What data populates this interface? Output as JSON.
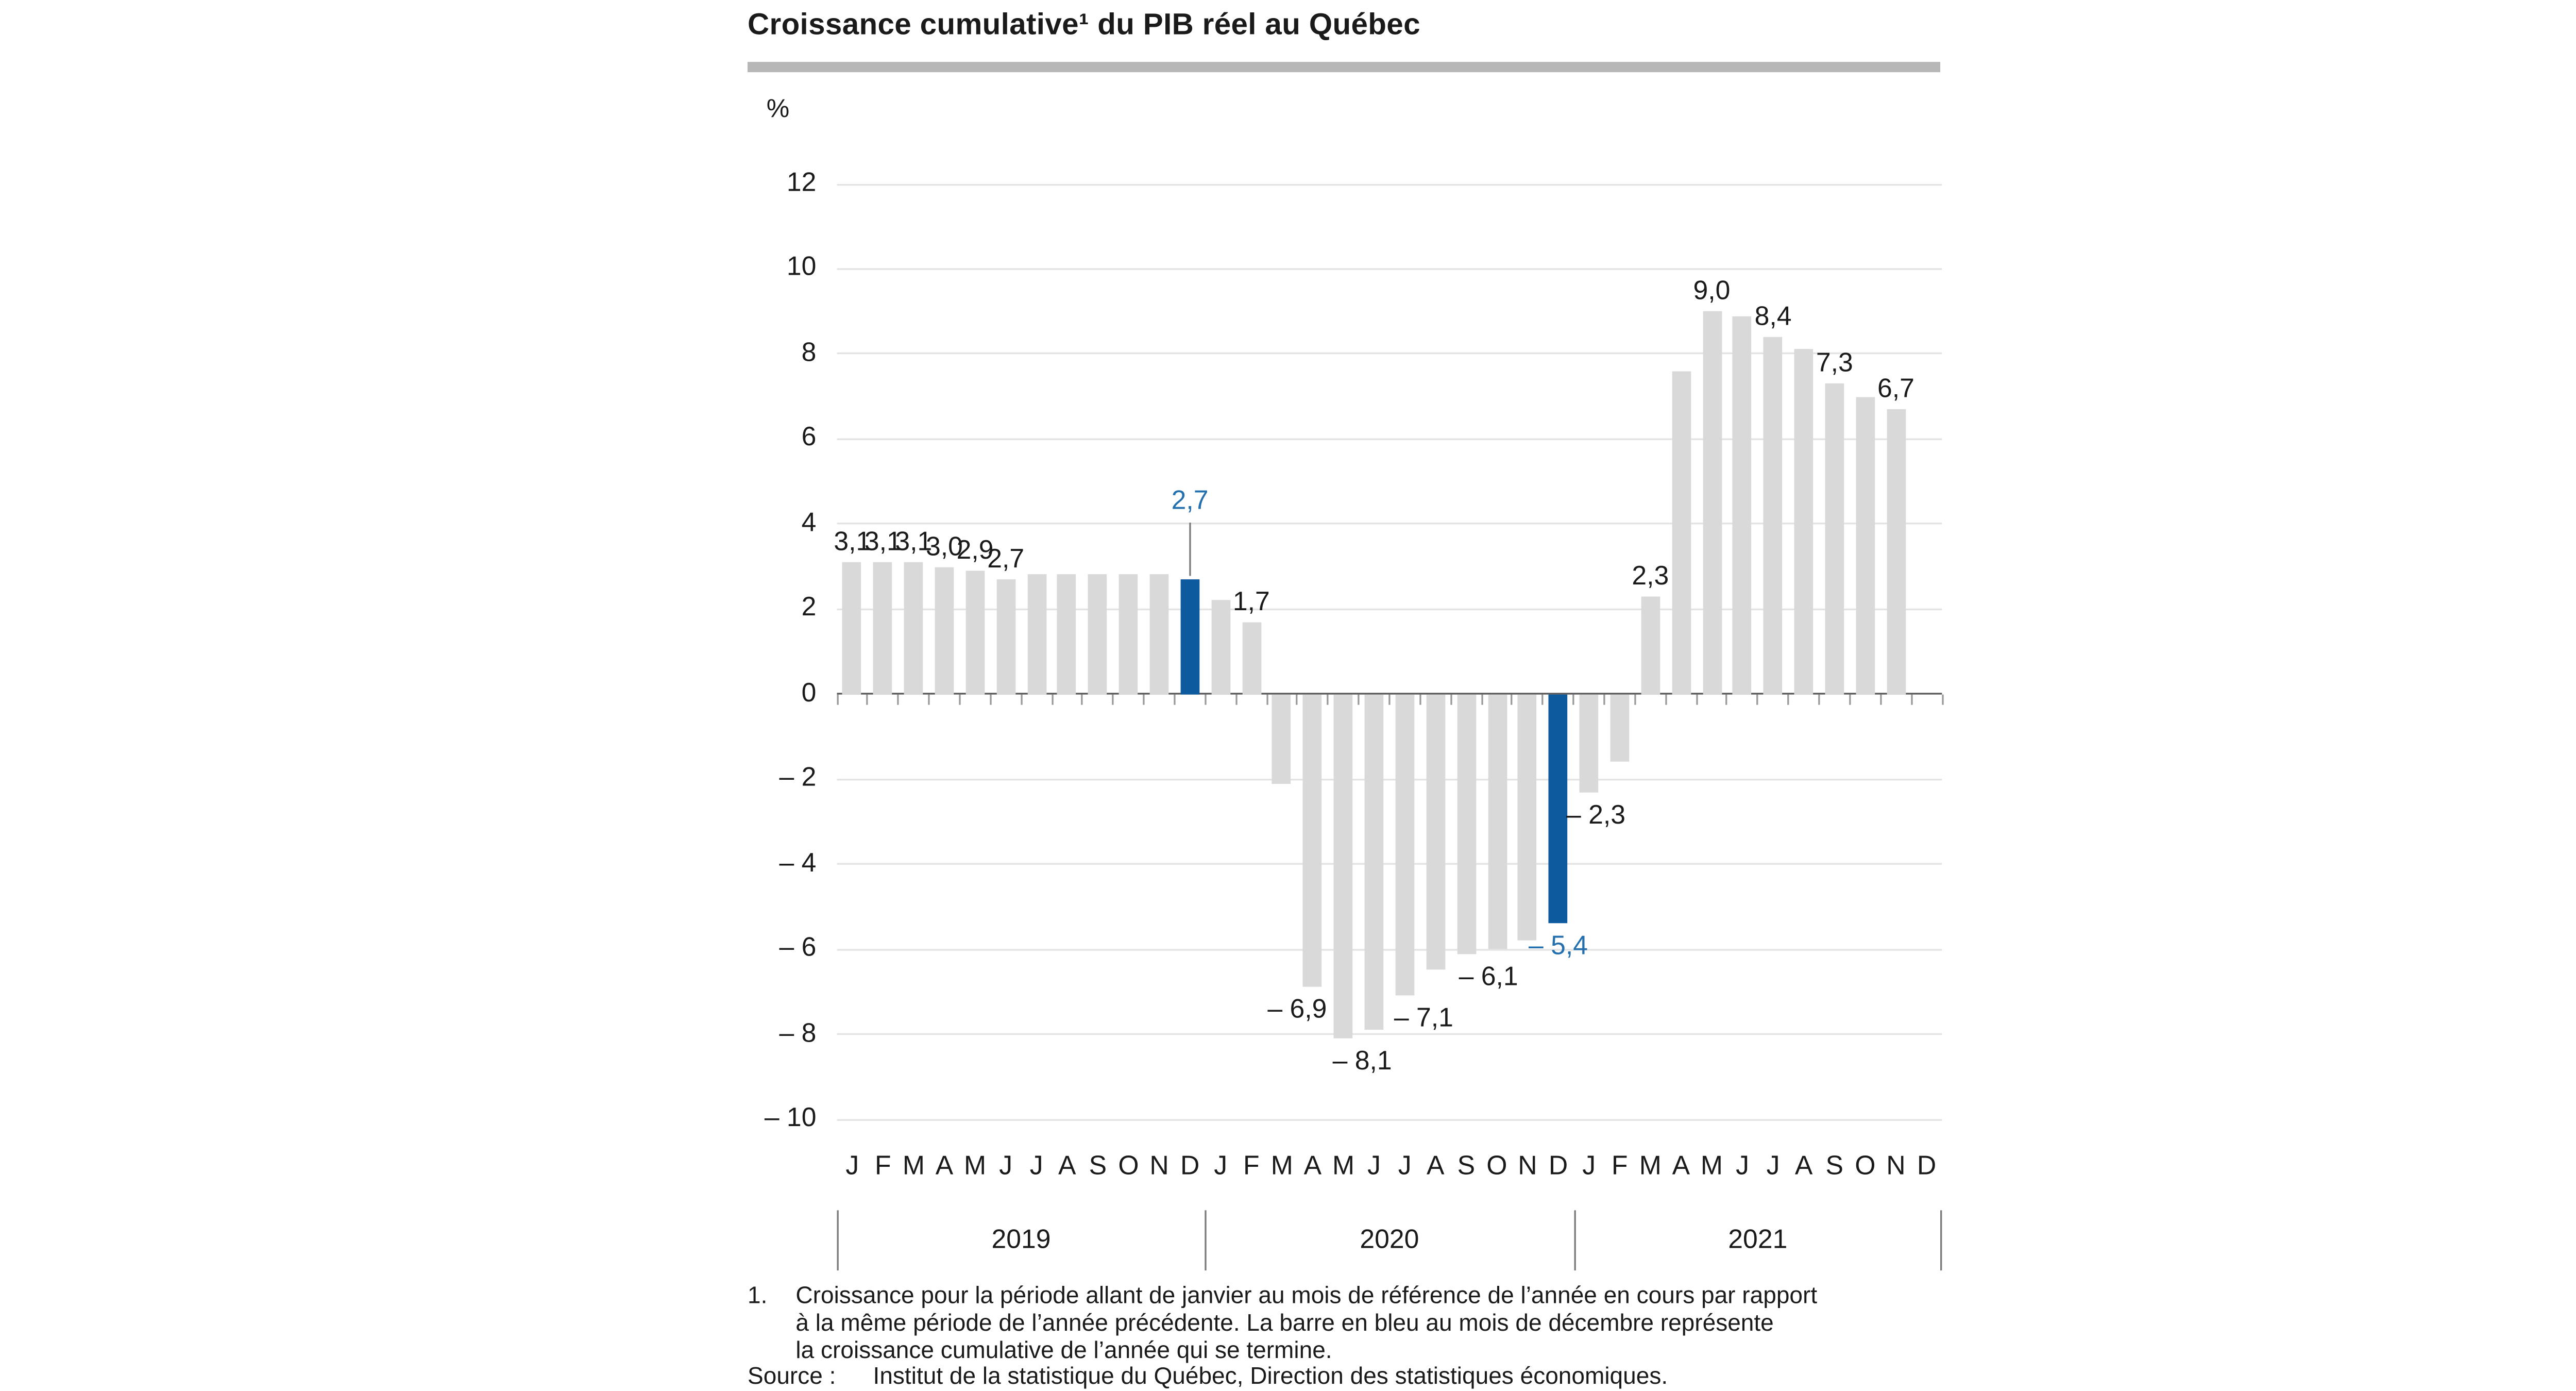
{
  "title": "Croissance cumulative¹ du PIB réel au Québec",
  "chart_data": {
    "type": "bar",
    "title": "Croissance cumulative¹ du PIB réel au Québec",
    "xlabel": "",
    "ylabel": "%",
    "ylim": [
      -10,
      12
    ],
    "grid": true,
    "legend": "none",
    "yticks": [
      {
        "v": 12,
        "label": "12"
      },
      {
        "v": 10,
        "label": "10"
      },
      {
        "v": 8,
        "label": "8"
      },
      {
        "v": 6,
        "label": "6"
      },
      {
        "v": 4,
        "label": "4"
      },
      {
        "v": 2,
        "label": "2"
      },
      {
        "v": 0,
        "label": "0"
      },
      {
        "v": -2,
        "label": "– 2"
      },
      {
        "v": -4,
        "label": "– 4"
      },
      {
        "v": -6,
        "label": "– 6"
      },
      {
        "v": -8,
        "label": "– 8"
      },
      {
        "v": -10,
        "label": "– 10"
      }
    ],
    "years": [
      {
        "label": "2019",
        "start": 0,
        "end": 12
      },
      {
        "label": "2020",
        "start": 12,
        "end": 24
      },
      {
        "label": "2021",
        "start": 24,
        "end": 36
      }
    ],
    "points": [
      {
        "month": "J",
        "year": "2019",
        "value": 3.1,
        "label": "3,1"
      },
      {
        "month": "F",
        "year": "2019",
        "value": 3.1,
        "label": "3,1"
      },
      {
        "month": "M",
        "year": "2019",
        "value": 3.1,
        "label": "3,1"
      },
      {
        "month": "A",
        "year": "2019",
        "value": 3.0,
        "label": "3,0"
      },
      {
        "month": "M",
        "year": "2019",
        "value": 2.9,
        "label": "2,9"
      },
      {
        "month": "J",
        "year": "2019",
        "value": 2.7,
        "label": "2,7"
      },
      {
        "month": "J",
        "year": "2019",
        "value": 2.8
      },
      {
        "month": "A",
        "year": "2019",
        "value": 2.8
      },
      {
        "month": "S",
        "year": "2019",
        "value": 2.8
      },
      {
        "month": "O",
        "year": "2019",
        "value": 2.8
      },
      {
        "month": "N",
        "year": "2019",
        "value": 2.8
      },
      {
        "month": "D",
        "year": "2019",
        "value": 2.7,
        "label": "2,7",
        "blue": true,
        "callout": true
      },
      {
        "month": "J",
        "year": "2020",
        "value": 2.2
      },
      {
        "month": "F",
        "year": "2020",
        "value": 1.7,
        "label": "1,7"
      },
      {
        "month": "M",
        "year": "2020",
        "value": -2.1
      },
      {
        "month": "A",
        "year": "2020",
        "value": -6.9,
        "label": "– 6,9",
        "label_dx": -9
      },
      {
        "month": "M",
        "year": "2020",
        "value": -8.1,
        "label": "– 8,1",
        "label_dx": 11
      },
      {
        "month": "J",
        "year": "2020",
        "value": -7.9
      },
      {
        "month": "J",
        "year": "2020",
        "value": -7.1,
        "label": "– 7,1",
        "label_dx": 11
      },
      {
        "month": "A",
        "year": "2020",
        "value": -6.5
      },
      {
        "month": "S",
        "year": "2020",
        "value": -6.1,
        "label": "– 6,1",
        "label_dx": 13
      },
      {
        "month": "O",
        "year": "2020",
        "value": -6.0
      },
      {
        "month": "N",
        "year": "2020",
        "value": -5.8
      },
      {
        "month": "D",
        "year": "2020",
        "value": -5.4,
        "label": "– 5,4",
        "blue": true
      },
      {
        "month": "J",
        "year": "2021",
        "value": -2.3,
        "label": "– 2,3",
        "label_dx": 4
      },
      {
        "month": "F",
        "year": "2021",
        "value": -1.6
      },
      {
        "month": "M",
        "year": "2021",
        "value": 2.3,
        "label": "2,3"
      },
      {
        "month": "A",
        "year": "2021",
        "value": 7.6
      },
      {
        "month": "M",
        "year": "2021",
        "value": 9.0,
        "label": "9,0"
      },
      {
        "month": "J",
        "year": "2021",
        "value": 8.9
      },
      {
        "month": "J",
        "year": "2021",
        "value": 8.4,
        "label": "8,4"
      },
      {
        "month": "A",
        "year": "2021",
        "value": 8.1
      },
      {
        "month": "S",
        "year": "2021",
        "value": 7.3,
        "label": "7,3"
      },
      {
        "month": "O",
        "year": "2021",
        "value": 7.0
      },
      {
        "month": "N",
        "year": "2021",
        "value": 6.7,
        "label": "6,7"
      },
      {
        "month": "D",
        "year": "2021",
        "value": null
      }
    ],
    "colors": {
      "bar": "#d9d9d9",
      "december_bar": "#0e5a9e",
      "blue_label": "#2470ae",
      "gridline": "#e3e3e3",
      "zero_line": "#595959",
      "title_rule": "#b7b7b7"
    }
  },
  "footnote": {
    "marker": "1.",
    "lines": [
      "Croissance pour la période allant de janvier au mois de référence de l’année en cours par rapport",
      "à la même période de l’année précédente. La barre en bleu au mois de décembre représente",
      "la croissance cumulative de l’année qui se termine."
    ]
  },
  "source": {
    "label": "Source :",
    "text": "Institut de la statistique du Québec, Direction des statistiques économiques."
  }
}
